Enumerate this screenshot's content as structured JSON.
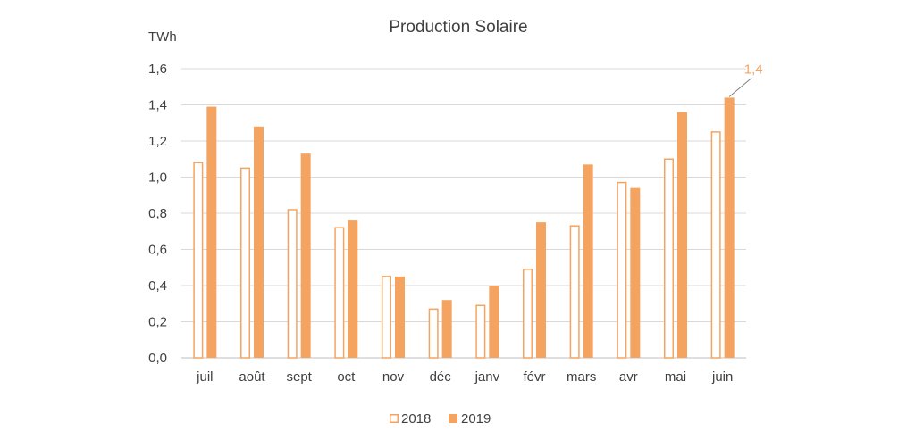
{
  "chart_data": {
    "type": "bar",
    "title": "Production Solaire",
    "ylabel": "TWh",
    "xlabel": "",
    "categories": [
      "juil",
      "août",
      "sept",
      "oct",
      "nov",
      "déc",
      "janv",
      "févr",
      "mars",
      "avr",
      "mai",
      "juin"
    ],
    "series": [
      {
        "name": "2018",
        "values": [
          1.08,
          1.05,
          0.82,
          0.72,
          0.45,
          0.27,
          0.29,
          0.49,
          0.73,
          0.97,
          1.1,
          1.25
        ],
        "style": "outline",
        "color": "#F4A460"
      },
      {
        "name": "2019",
        "values": [
          1.39,
          1.28,
          1.13,
          0.76,
          0.45,
          0.32,
          0.4,
          0.75,
          1.07,
          0.94,
          1.36,
          1.44
        ],
        "style": "filled",
        "color": "#F4A460"
      }
    ],
    "ylim": [
      0,
      1.6
    ],
    "yticks": [
      "0,0",
      "0,2",
      "0,4",
      "0,6",
      "0,8",
      "1,0",
      "1,2",
      "1,4",
      "1,6"
    ],
    "grid": true,
    "legend_position": "bottom-center",
    "annotations": [
      {
        "text": "1,4",
        "category": "juin",
        "series": "2019",
        "color": "#F4A460"
      }
    ]
  }
}
